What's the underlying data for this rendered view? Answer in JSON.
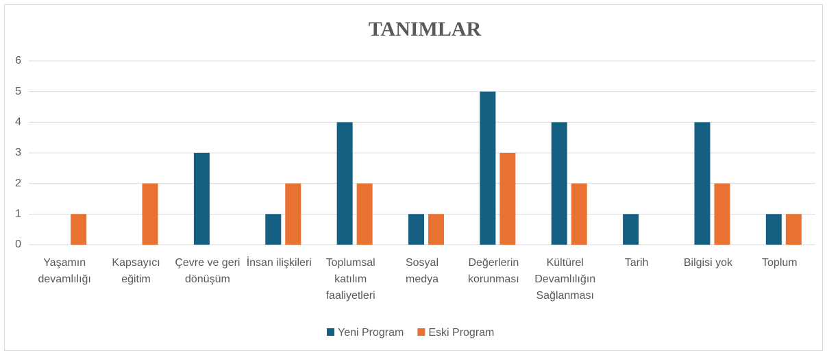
{
  "chart_data": {
    "type": "bar",
    "title": "TANIMLAR",
    "categories": [
      "Yaşamın devamlılığı",
      "Kapsayıcı eğitim",
      "Çevre ve geri dönüşüm",
      "İnsan ilişkileri",
      "Toplumsal katılım faaliyetleri",
      "Sosyal medya",
      "Değerlerin korunması",
      "Kültürel Devamlılığın Sağlanması",
      "Tarih",
      "Bilgisi yok",
      "Toplum"
    ],
    "series": [
      {
        "name": "Yeni Program",
        "color": "#156082",
        "values": [
          0,
          0,
          3,
          1,
          4,
          1,
          5,
          4,
          1,
          4,
          1
        ]
      },
      {
        "name": "Eski Program",
        "color": "#e97132",
        "values": [
          1,
          2,
          0,
          2,
          2,
          1,
          3,
          2,
          0,
          2,
          1
        ]
      }
    ],
    "ylim": [
      0,
      6
    ],
    "yticks": [
      0,
      1,
      2,
      3,
      4,
      5,
      6
    ],
    "grid": true,
    "legend": "bottom"
  }
}
